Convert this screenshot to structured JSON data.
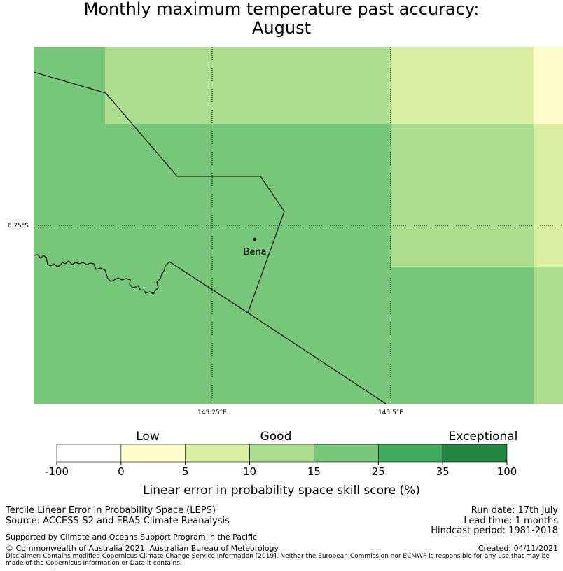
{
  "title": {
    "line1": "Monthly maximum temperature past accuracy:",
    "line2": "August"
  },
  "map": {
    "lat_label": "6.75°S",
    "lon_labels": [
      "145.25°E",
      "145.5°E"
    ],
    "place": "Bena",
    "colors": {
      "exceptional_mid": "#78c679",
      "good_high": "#addd8e",
      "good_low": "#d9f0a3",
      "low": "#ffffcc"
    }
  },
  "colorbar": {
    "category_labels": [
      "Low",
      "Good",
      "Exceptional"
    ],
    "ticks": [
      "-100",
      "0",
      "5",
      "10",
      "15",
      "25",
      "35",
      "100"
    ],
    "colors": [
      "#ffffff",
      "#ffffcc",
      "#d9f0a3",
      "#addd8e",
      "#78c679",
      "#41ab5d",
      "#238443"
    ],
    "axis_label": "Linear error in probability space skill score (%)"
  },
  "footer": {
    "method": "Tercile Linear Error in Probability Space (LEPS)",
    "source": "Source: ACCESS-S2 and ERA5 Climate Reanalysis",
    "support": "Supported by Climate and Oceans Support Program in the Pacific",
    "copyright": "© Commonwealth of Australia 2021, Australian Bureau of Meteorology",
    "disclaimer": "Disclaimer: Contains modified Copernicus Climate Change Service Information [2019]. Neither the European Commission nor ECMWF is responsible for any use that may be made of the Copernicus Information or Data it contains.",
    "run_date": "Run date: 17th July",
    "lead_time": "Lead time: 1 months",
    "hindcast": "Hindcast period: 1981-2018",
    "created": "Created: 04/11/2021"
  }
}
